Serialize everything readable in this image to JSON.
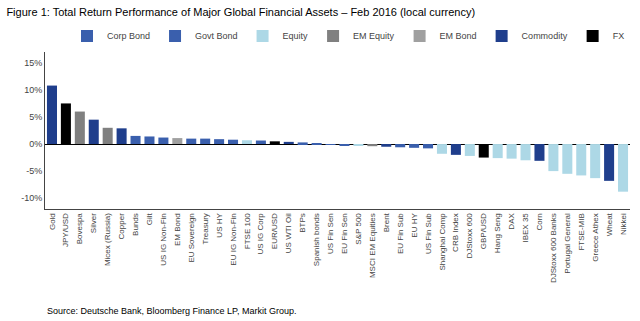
{
  "chart_data": {
    "type": "bar",
    "title": "Figure 1: Total Return Performance of Major Global Financial Assets – Feb 2016 (local currency)",
    "annotations": [
      "Source: Deutsche Bank, Bloomberg Finance LP, Markit Group."
    ],
    "categories": [
      "Gold",
      "JPY/USD",
      "Bovespa",
      "Silver",
      "Micex (Russia)",
      "Copper",
      "Bunds",
      "Gilt",
      "US IG Non-Fin",
      "EM Bond",
      "EU Sovereign",
      "Treasury",
      "US HY",
      "EU IG Non-Fin",
      "FTSE 100",
      "US IG Corp",
      "EUR/USD",
      "US WTI Oil",
      "BTPs",
      "Spanish bonds",
      "US Fin Sen",
      "EU Fin Sen",
      "S&P 500",
      "MSCI EM Equities",
      "Brent",
      "EU Fin Sub",
      "EU HY",
      "US Fin Sub",
      "Shanghai Comp",
      "CRB Index",
      "DJStoxx 600",
      "GBP/USD",
      "Hang Seng",
      "DAX",
      "IBEX 35",
      "Corn",
      "DJStoxx 600 Banks",
      "Portugal General",
      "FTSE-MIB",
      "Greece Athex",
      "Wheat",
      "Nikkei"
    ],
    "values": [
      10.8,
      7.5,
      6.0,
      4.5,
      3.0,
      2.9,
      1.5,
      1.4,
      1.2,
      1.1,
      1.0,
      1.0,
      0.9,
      0.8,
      0.7,
      0.65,
      0.5,
      0.4,
      0.3,
      0.1,
      -0.1,
      -0.2,
      -0.3,
      -0.4,
      -0.5,
      -0.6,
      -0.7,
      -0.8,
      -1.8,
      -2.0,
      -2.2,
      -2.5,
      -2.6,
      -2.7,
      -3.0,
      -3.1,
      -5.0,
      -5.5,
      -5.8,
      -6.3,
      -6.8,
      -8.8
    ],
    "colors": [
      "#1f3e8c",
      "#000000",
      "#808080",
      "#1f3e8c",
      "#808080",
      "#1f3e8c",
      "#3a5fad",
      "#3a5fad",
      "#3a5fad",
      "#a0a0a0",
      "#3a5fad",
      "#3a5fad",
      "#3a5fad",
      "#3a5fad",
      "#add8e6",
      "#3a5fad",
      "#000000",
      "#1f3e8c",
      "#3a5fad",
      "#3a5fad",
      "#3a5fad",
      "#3a5fad",
      "#add8e6",
      "#808080",
      "#1f3e8c",
      "#3a5fad",
      "#3a5fad",
      "#3a5fad",
      "#add8e6",
      "#1f3e8c",
      "#add8e6",
      "#000000",
      "#add8e6",
      "#add8e6",
      "#add8e6",
      "#1f3e8c",
      "#add8e6",
      "#add8e6",
      "#add8e6",
      "#add8e6",
      "#1f3e8c",
      "#add8e6"
    ],
    "legend": "upper right",
    "legend_entries": [
      {
        "name": "Corp Bond",
        "color": "#3a5fad"
      },
      {
        "name": "Govt Bond",
        "color": "#3a5fad"
      },
      {
        "name": "Equity",
        "color": "#add8e6"
      },
      {
        "name": "EM Equity",
        "color": "#808080"
      },
      {
        "name": "EM Bond",
        "color": "#a0a0a0"
      },
      {
        "name": "Commodity",
        "color": "#1f3e8c"
      },
      {
        "name": "FX",
        "color": "#000000"
      }
    ],
    "ylim": [
      -12,
      17
    ],
    "yticks": [
      {
        "value": -10,
        "label": "-10%"
      },
      {
        "value": -5,
        "label": "-5%"
      },
      {
        "value": 0,
        "label": "0%"
      },
      {
        "value": 5,
        "label": "5%"
      },
      {
        "value": 10,
        "label": "10%"
      },
      {
        "value": 15,
        "label": "15%"
      }
    ],
    "grid": false
  }
}
